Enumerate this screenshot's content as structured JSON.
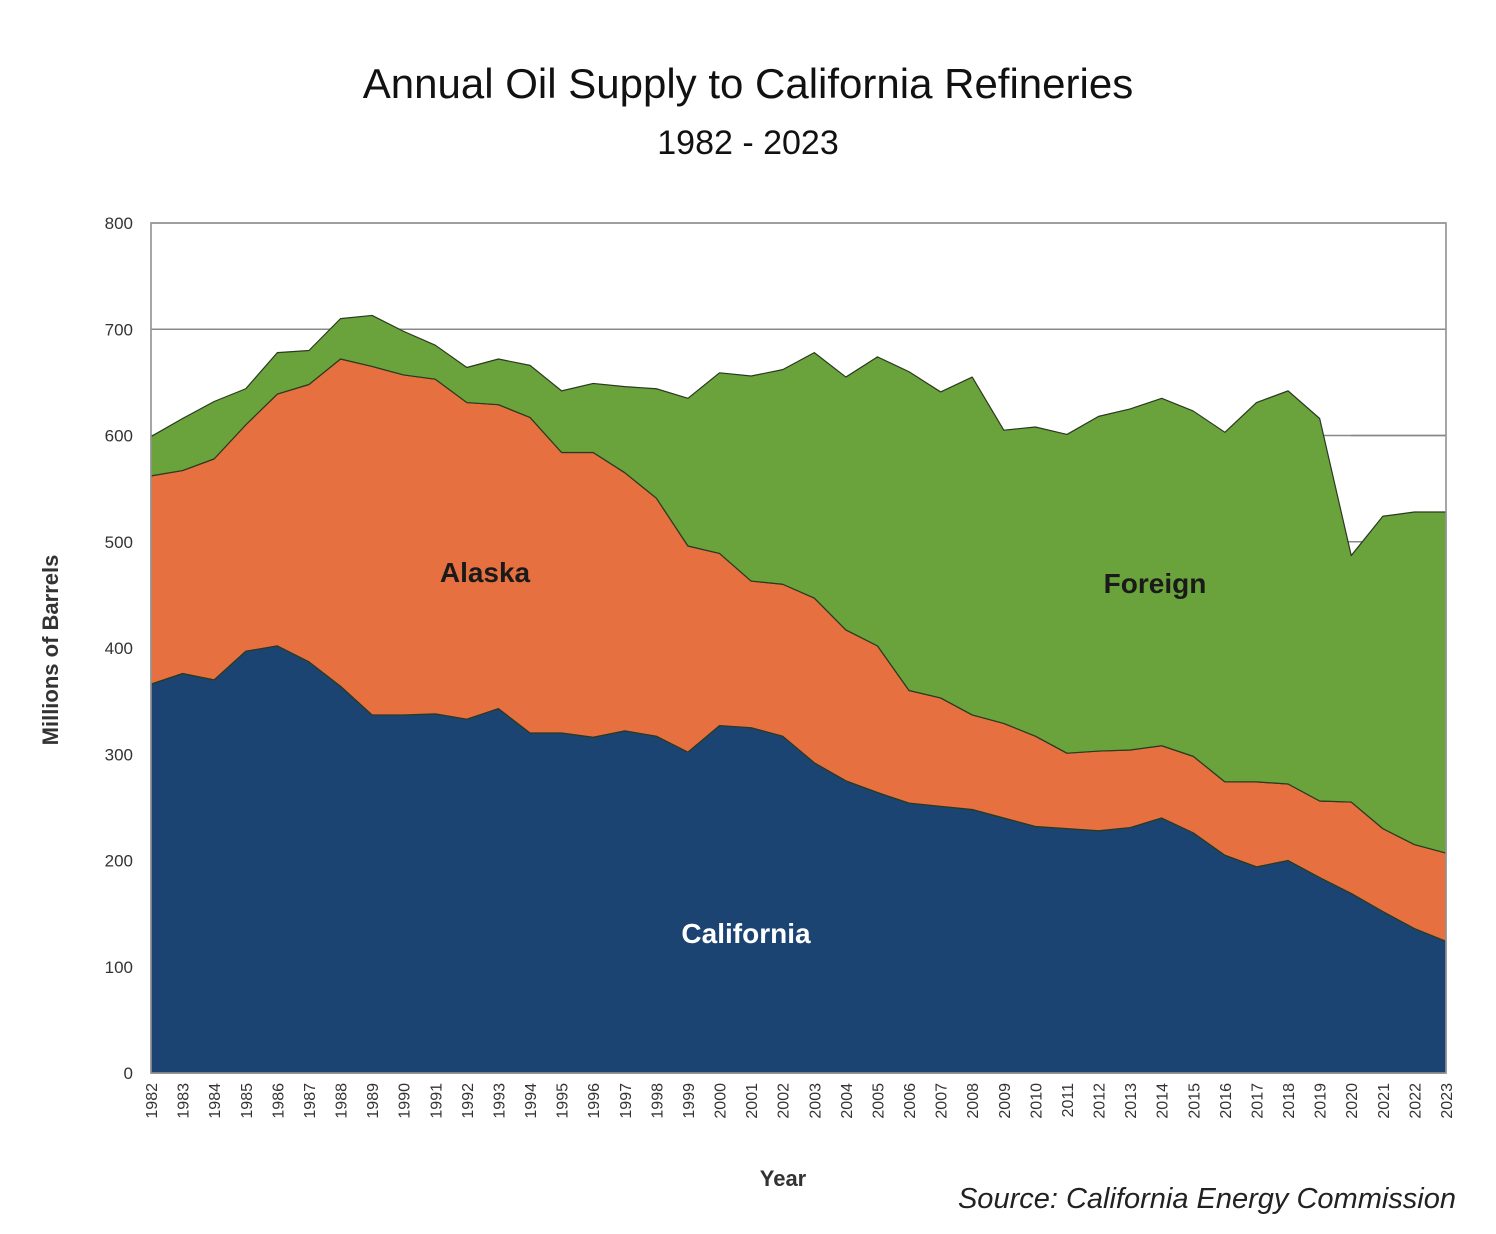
{
  "chart_data": {
    "type": "area",
    "stacked": true,
    "title": "Annual Oil Supply to California Refineries",
    "subtitle": "1982 - 2023",
    "xlabel": "Year",
    "ylabel": "Millions of Barrels",
    "ylim": [
      0,
      800
    ],
    "yticks": [
      0,
      100,
      200,
      300,
      400,
      500,
      600,
      700,
      800
    ],
    "grid": true,
    "source": "Source: California Energy Commission",
    "x": [
      1982,
      1983,
      1984,
      1985,
      1986,
      1987,
      1988,
      1989,
      1990,
      1991,
      1992,
      1993,
      1994,
      1995,
      1996,
      1997,
      1998,
      1999,
      2000,
      2001,
      2002,
      2003,
      2004,
      2005,
      2006,
      2007,
      2008,
      2009,
      2010,
      2011,
      2012,
      2013,
      2014,
      2015,
      2016,
      2017,
      2018,
      2019,
      2020,
      2021,
      2022,
      2023
    ],
    "series": [
      {
        "name": "California",
        "color": "#1c4473",
        "values": [
          366,
          376,
          370,
          397,
          402,
          387,
          364,
          337,
          337,
          338,
          333,
          343,
          320,
          320,
          316,
          322,
          317,
          302,
          327,
          325,
          317,
          292,
          275,
          264,
          254,
          251,
          248,
          240,
          232,
          230,
          228,
          231,
          240,
          226,
          205,
          194,
          200,
          184,
          169,
          152,
          136,
          124
        ]
      },
      {
        "name": "Alaska",
        "color": "#e6703f",
        "values": [
          196,
          191,
          208,
          213,
          237,
          261,
          308,
          328,
          320,
          315,
          298,
          286,
          297,
          264,
          268,
          243,
          224,
          194,
          162,
          138,
          143,
          155,
          142,
          138,
          106,
          102,
          89,
          89,
          85,
          71,
          75,
          73,
          68,
          72,
          69,
          80,
          72,
          72,
          86,
          78,
          79,
          83
        ]
      },
      {
        "name": "Foreign",
        "color": "#6aa23c",
        "values": [
          37,
          49,
          54,
          34,
          39,
          32,
          38,
          48,
          41,
          32,
          33,
          43,
          49,
          58,
          65,
          81,
          103,
          139,
          170,
          193,
          202,
          231,
          238,
          272,
          300,
          288,
          318,
          276,
          291,
          300,
          315,
          321,
          327,
          325,
          329,
          357,
          370,
          360,
          232,
          294,
          313,
          321
        ]
      }
    ]
  }
}
